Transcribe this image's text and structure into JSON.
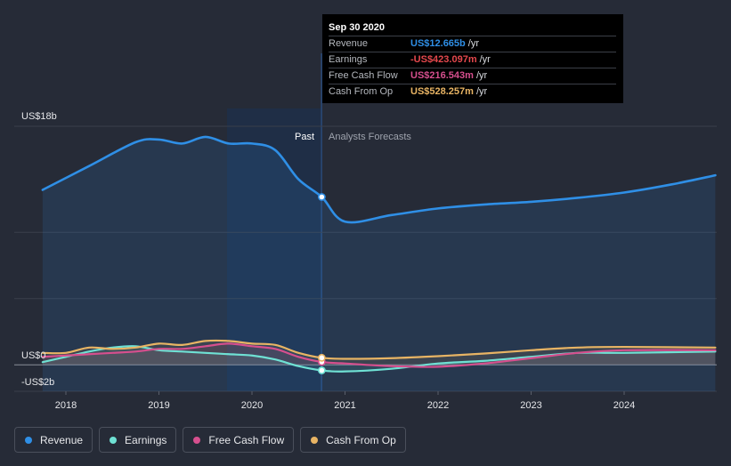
{
  "chart_data": {
    "type": "line",
    "y_axis": {
      "top_label": "US$18b",
      "zero_label": "US$0",
      "bottom_label": "-US$2b",
      "ylim": [
        -2,
        18
      ]
    },
    "x_ticks": [
      "2018",
      "2019",
      "2020",
      "2021",
      "2022",
      "2023",
      "2024"
    ],
    "regions": {
      "past_label": "Past",
      "forecast_label": "Analysts Forecasts",
      "divider_date": "Sep 30 2020"
    },
    "series": [
      {
        "name": "Revenue",
        "color": "#2f8fe6",
        "points": [
          [
            2017.75,
            13.2
          ],
          [
            2018.25,
            15.0
          ],
          [
            2018.75,
            16.8
          ],
          [
            2019.0,
            17.0
          ],
          [
            2019.25,
            16.7
          ],
          [
            2019.5,
            17.2
          ],
          [
            2019.75,
            16.7
          ],
          [
            2020.0,
            16.7
          ],
          [
            2020.25,
            16.2
          ],
          [
            2020.5,
            14.0
          ],
          [
            2020.75,
            12.665
          ],
          [
            2021.0,
            10.8
          ],
          [
            2021.5,
            11.3
          ],
          [
            2022.0,
            11.8
          ],
          [
            2022.5,
            12.1
          ],
          [
            2023.0,
            12.3
          ],
          [
            2023.5,
            12.6
          ],
          [
            2024.0,
            13.0
          ],
          [
            2024.5,
            13.6
          ],
          [
            2024.98,
            14.3
          ]
        ]
      },
      {
        "name": "Earnings",
        "color": "#6fe1d4",
        "points": [
          [
            2017.75,
            0.2
          ],
          [
            2018.0,
            0.6
          ],
          [
            2018.25,
            1.0
          ],
          [
            2018.5,
            1.3
          ],
          [
            2018.75,
            1.4
          ],
          [
            2019.0,
            1.1
          ],
          [
            2019.25,
            1.0
          ],
          [
            2019.5,
            0.9
          ],
          [
            2019.75,
            0.8
          ],
          [
            2020.0,
            0.7
          ],
          [
            2020.25,
            0.4
          ],
          [
            2020.5,
            -0.1
          ],
          [
            2020.75,
            -0.423
          ],
          [
            2021.0,
            -0.5
          ],
          [
            2021.5,
            -0.3
          ],
          [
            2022.0,
            0.1
          ],
          [
            2022.5,
            0.3
          ],
          [
            2023.0,
            0.6
          ],
          [
            2023.5,
            0.9
          ],
          [
            2024.0,
            0.9
          ],
          [
            2024.98,
            1.0
          ]
        ]
      },
      {
        "name": "Free Cash Flow",
        "color": "#d64f8e",
        "points": [
          [
            2017.75,
            0.6
          ],
          [
            2018.0,
            0.7
          ],
          [
            2018.25,
            0.8
          ],
          [
            2018.5,
            0.9
          ],
          [
            2018.75,
            1.0
          ],
          [
            2019.0,
            1.2
          ],
          [
            2019.25,
            1.2
          ],
          [
            2019.5,
            1.4
          ],
          [
            2019.75,
            1.6
          ],
          [
            2020.0,
            1.4
          ],
          [
            2020.25,
            1.2
          ],
          [
            2020.5,
            0.6
          ],
          [
            2020.75,
            0.217
          ],
          [
            2021.0,
            0.1
          ],
          [
            2021.5,
            -0.1
          ],
          [
            2022.0,
            -0.15
          ],
          [
            2022.5,
            0.1
          ],
          [
            2023.0,
            0.5
          ],
          [
            2023.5,
            0.9
          ],
          [
            2024.0,
            1.1
          ],
          [
            2024.98,
            1.1
          ]
        ]
      },
      {
        "name": "Cash From Op",
        "color": "#e8b464",
        "points": [
          [
            2017.75,
            0.9
          ],
          [
            2018.0,
            0.9
          ],
          [
            2018.25,
            1.3
          ],
          [
            2018.5,
            1.2
          ],
          [
            2018.75,
            1.3
          ],
          [
            2019.0,
            1.6
          ],
          [
            2019.25,
            1.5
          ],
          [
            2019.5,
            1.8
          ],
          [
            2019.75,
            1.8
          ],
          [
            2020.0,
            1.6
          ],
          [
            2020.25,
            1.5
          ],
          [
            2020.5,
            0.9
          ],
          [
            2020.75,
            0.528
          ],
          [
            2021.0,
            0.45
          ],
          [
            2021.5,
            0.5
          ],
          [
            2022.0,
            0.65
          ],
          [
            2022.5,
            0.85
          ],
          [
            2023.0,
            1.1
          ],
          [
            2023.5,
            1.3
          ],
          [
            2024.0,
            1.35
          ],
          [
            2024.98,
            1.3
          ]
        ]
      }
    ],
    "grid": true,
    "legend_position": "bottom-left"
  },
  "tooltip": {
    "title": "Sep 30 2020",
    "rows": [
      {
        "name": "Revenue",
        "value": "US$12.665b",
        "unit": "/yr",
        "color": "#2f8fe6"
      },
      {
        "name": "Earnings",
        "value": "-US$423.097m",
        "unit": "/yr",
        "color": "#e5484d"
      },
      {
        "name": "Free Cash Flow",
        "value": "US$216.543m",
        "unit": "/yr",
        "color": "#d64f8e"
      },
      {
        "name": "Cash From Op",
        "value": "US$528.257m",
        "unit": "/yr",
        "color": "#e8b464"
      }
    ]
  },
  "legend": [
    {
      "label": "Revenue",
      "color": "#2f8fe6"
    },
    {
      "label": "Earnings",
      "color": "#6fe1d4"
    },
    {
      "label": "Free Cash Flow",
      "color": "#d64f8e"
    },
    {
      "label": "Cash From Op",
      "color": "#e8b464"
    }
  ]
}
